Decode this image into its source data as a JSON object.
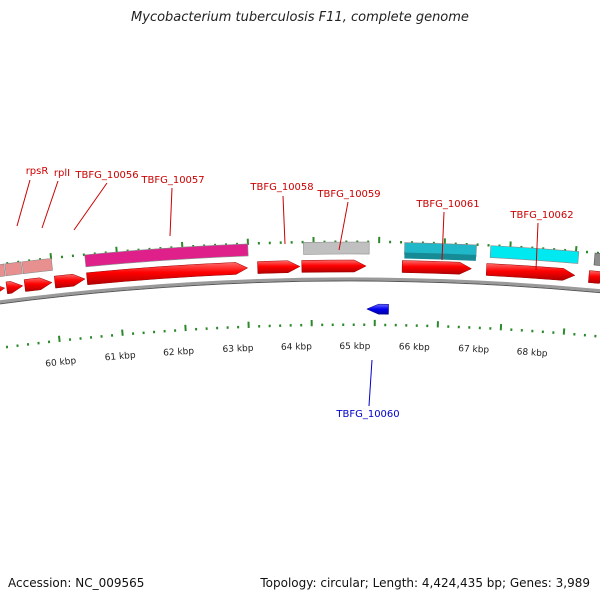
{
  "title": "Mycobacterium tuberculosis F11, complete genome",
  "footer": {
    "accession": "Accession: NC_009565",
    "stats": "Topology: circular; Length: 4,424,435 bp; Genes: 3,989"
  },
  "colors": {
    "cds": "#ff0000",
    "gene_pink": "#e0208a",
    "gene_salmon": "#e89090",
    "gene_gray": "#c0c0c0",
    "gene_teal": "#20b8c8",
    "gene_cyan": "#00e8f0",
    "gene_blue": "#0000ee",
    "tick": "#2a8a2a",
    "label_red": "#cc0000",
    "label_blue": "#0000cc",
    "backbone": "#777777"
  },
  "genome_track": {
    "kbp_ticks": [
      "60 kbp",
      "61 kbp",
      "62 kbp",
      "63 kbp",
      "64 kbp",
      "65 kbp",
      "66 kbp",
      "67 kbp",
      "68 kbp"
    ],
    "genes": [
      {
        "name": "rpsR",
        "strand": "+",
        "color": "#e89090"
      },
      {
        "name": "rplI",
        "strand": "+",
        "color": "#e89090"
      },
      {
        "name": "TBFG_10056",
        "strand": "+",
        "color": "#e89090"
      },
      {
        "name": "TBFG_10057",
        "strand": "+",
        "color": "#e0208a"
      },
      {
        "name": "TBFG_10058",
        "strand": "+",
        "color": "#c0c0c0"
      },
      {
        "name": "TBFG_10059",
        "strand": "+",
        "color": "#c0c0c0"
      },
      {
        "name": "TBFG_10060",
        "strand": "-",
        "color": "#0000ee"
      },
      {
        "name": "TBFG_10061",
        "strand": "+",
        "color": "#20b8c8"
      },
      {
        "name": "TBFG_10062",
        "strand": "+",
        "color": "#00e8f0"
      }
    ]
  }
}
